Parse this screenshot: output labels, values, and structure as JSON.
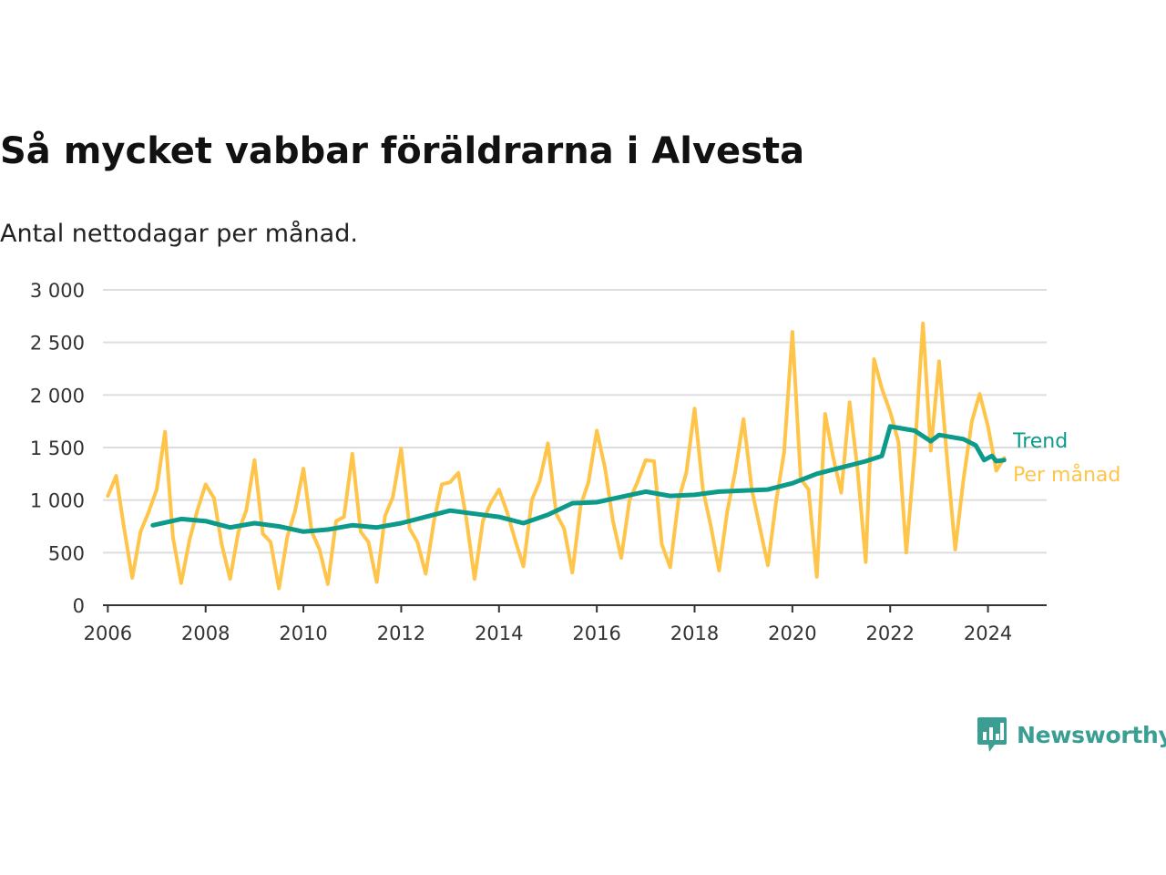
{
  "header": {
    "title": "Så mycket vabbar föräldrarna i Alvesta",
    "subtitle": "Antal nettodagar per månad."
  },
  "brand": {
    "name": "Newsworthy",
    "color": "#3a9f92",
    "icon": "newsworthy-logo-icon"
  },
  "chart_data": {
    "type": "line",
    "xlabel": "",
    "ylabel": "",
    "ylim": [
      0,
      3000
    ],
    "xlim": [
      2005.9,
      2025.2
    ],
    "y_ticks": [
      0,
      500,
      1000,
      1500,
      2000,
      2500,
      3000
    ],
    "y_tick_labels": [
      "0",
      "500",
      "1 000",
      "1 500",
      "2 000",
      "2 500",
      "3 000"
    ],
    "x_ticks": [
      2006,
      2008,
      2010,
      2012,
      2014,
      2016,
      2018,
      2020,
      2022,
      2024
    ],
    "x_tick_labels": [
      "2006",
      "2008",
      "2010",
      "2012",
      "2014",
      "2016",
      "2018",
      "2020",
      "2022",
      "2024"
    ],
    "grid": true,
    "legend": "inline-right",
    "series": [
      {
        "name": "Per månad",
        "color": "#ffc54a",
        "x": [
          2006.0,
          2006.17,
          2006.33,
          2006.5,
          2006.67,
          2006.83,
          2007.0,
          2007.17,
          2007.33,
          2007.5,
          2007.67,
          2007.83,
          2008.0,
          2008.17,
          2008.33,
          2008.5,
          2008.67,
          2008.83,
          2009.0,
          2009.17,
          2009.33,
          2009.5,
          2009.67,
          2009.83,
          2010.0,
          2010.17,
          2010.33,
          2010.5,
          2010.67,
          2010.83,
          2011.0,
          2011.17,
          2011.33,
          2011.5,
          2011.67,
          2011.83,
          2012.0,
          2012.17,
          2012.33,
          2012.5,
          2012.67,
          2012.83,
          2013.0,
          2013.17,
          2013.33,
          2013.5,
          2013.67,
          2013.83,
          2014.0,
          2014.17,
          2014.33,
          2014.5,
          2014.67,
          2014.83,
          2015.0,
          2015.17,
          2015.33,
          2015.5,
          2015.67,
          2015.83,
          2016.0,
          2016.17,
          2016.33,
          2016.5,
          2016.67,
          2016.83,
          2017.0,
          2017.17,
          2017.33,
          2017.5,
          2017.67,
          2017.83,
          2018.0,
          2018.17,
          2018.33,
          2018.5,
          2018.67,
          2018.83,
          2019.0,
          2019.17,
          2019.33,
          2019.5,
          2019.67,
          2019.83,
          2020.0,
          2020.17,
          2020.33,
          2020.5,
          2020.67,
          2020.83,
          2021.0,
          2021.17,
          2021.33,
          2021.5,
          2021.67,
          2021.83,
          2022.0,
          2022.17,
          2022.33,
          2022.5,
          2022.67,
          2022.83,
          2023.0,
          2023.17,
          2023.33,
          2023.5,
          2023.67,
          2023.83,
          2024.0,
          2024.17,
          2024.33
        ],
        "values": [
          1040,
          1230,
          740,
          260,
          700,
          880,
          1100,
          1650,
          650,
          210,
          620,
          900,
          1150,
          1020,
          580,
          250,
          700,
          900,
          1380,
          680,
          600,
          160,
          650,
          900,
          1300,
          700,
          530,
          200,
          800,
          840,
          1440,
          700,
          600,
          220,
          850,
          1030,
          1490,
          730,
          600,
          300,
          800,
          1150,
          1170,
          1260,
          830,
          250,
          800,
          970,
          1100,
          880,
          620,
          370,
          1000,
          1180,
          1540,
          870,
          730,
          310,
          950,
          1170,
          1660,
          1300,
          800,
          450,
          1000,
          1170,
          1380,
          1370,
          580,
          360,
          1000,
          1260,
          1870,
          1100,
          760,
          330,
          900,
          1270,
          1770,
          1100,
          750,
          380,
          1000,
          1450,
          2600,
          1200,
          1100,
          270,
          1820,
          1420,
          1070,
          1930,
          1300,
          410,
          2340,
          2060,
          1840,
          1550,
          500,
          1450,
          2680,
          1470,
          2320,
          1360,
          530,
          1200,
          1750,
          2010,
          1700,
          1280,
          1400
        ]
      },
      {
        "name": "Trend",
        "color": "#0c9b8a",
        "x": [
          2006.92,
          2007.5,
          2008.0,
          2008.5,
          2009.0,
          2009.5,
          2010.0,
          2010.5,
          2011.0,
          2011.5,
          2012.0,
          2012.5,
          2013.0,
          2013.5,
          2014.0,
          2014.5,
          2015.0,
          2015.5,
          2016.0,
          2016.5,
          2017.0,
          2017.5,
          2018.0,
          2018.5,
          2019.0,
          2019.5,
          2020.0,
          2020.5,
          2021.0,
          2021.25,
          2021.5,
          2021.83,
          2022.0,
          2022.5,
          2022.83,
          2023.0,
          2023.5,
          2023.75,
          2023.92,
          2024.08,
          2024.17,
          2024.33
        ],
        "values": [
          760,
          820,
          800,
          740,
          780,
          750,
          700,
          720,
          760,
          740,
          780,
          840,
          900,
          870,
          840,
          780,
          860,
          970,
          980,
          1030,
          1080,
          1040,
          1050,
          1080,
          1090,
          1100,
          1160,
          1250,
          1310,
          1340,
          1370,
          1420,
          1700,
          1660,
          1560,
          1620,
          1580,
          1520,
          1380,
          1420,
          1370,
          1380
        ]
      }
    ]
  }
}
